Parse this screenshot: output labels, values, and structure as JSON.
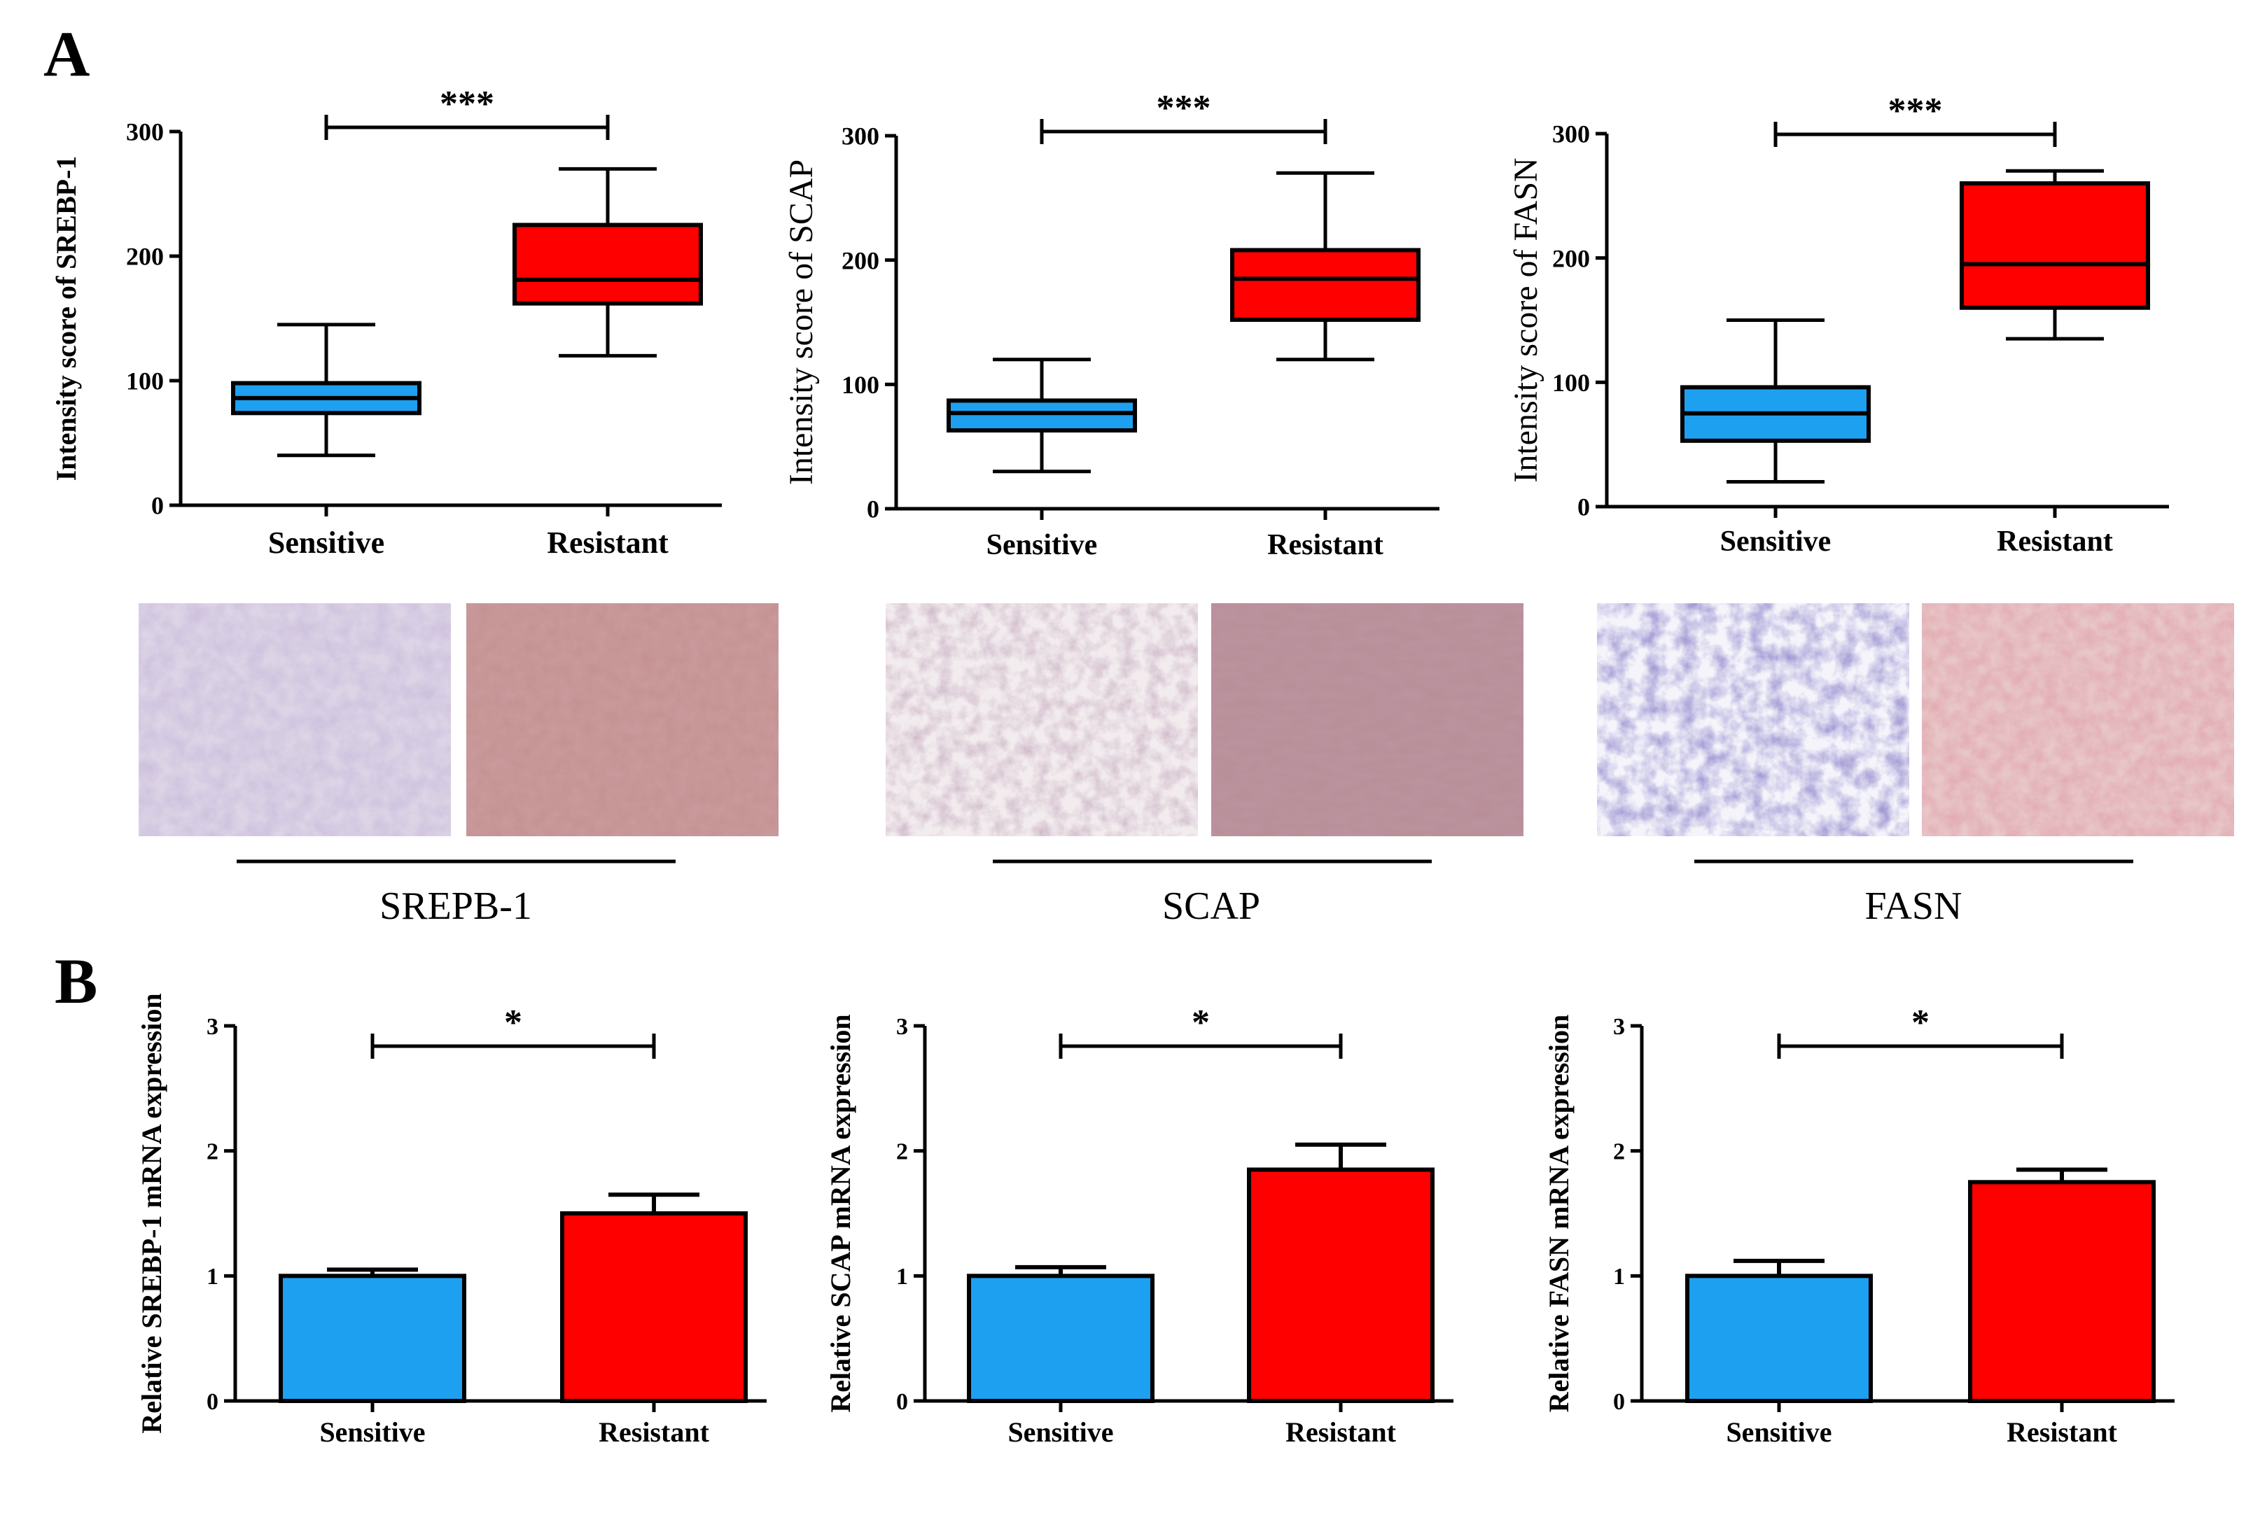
{
  "panels": {
    "a": {
      "label": "A"
    },
    "b": {
      "label": "B"
    }
  },
  "colors": {
    "sensitive": "#1ea0f0",
    "resistant": "#ff0000",
    "axis": "#000000"
  },
  "chart_data": [
    {
      "type": "box",
      "title": "",
      "ylabel": "Intensity score of SREBP-1",
      "ylabel_bold": true,
      "ylim": [
        0,
        300
      ],
      "yticks": [
        0,
        100,
        200,
        300
      ],
      "categories": [
        "Sensitive",
        "Resistant"
      ],
      "boxes": [
        {
          "name": "Sensitive",
          "min": 40,
          "q1": 74,
          "median": 86,
          "q3": 98,
          "max": 145
        },
        {
          "name": "Resistant",
          "min": 120,
          "q1": 162,
          "median": 181,
          "q3": 225,
          "max": 270
        }
      ],
      "significance": "***"
    },
    {
      "type": "box",
      "title": "",
      "ylabel": "Intensity score of SCAP",
      "ylabel_bold": false,
      "ylim": [
        0,
        300
      ],
      "yticks": [
        0,
        100,
        200,
        300
      ],
      "categories": [
        "Sensitive",
        "Resistant"
      ],
      "boxes": [
        {
          "name": "Sensitive",
          "min": 30,
          "q1": 63,
          "median": 77,
          "q3": 87,
          "max": 120
        },
        {
          "name": "Resistant",
          "min": 120,
          "q1": 152,
          "median": 185,
          "q3": 208,
          "max": 270
        }
      ],
      "significance": "***"
    },
    {
      "type": "box",
      "title": "",
      "ylabel": "Intensity score of FASN",
      "ylabel_bold": false,
      "ylim": [
        0,
        300
      ],
      "yticks": [
        0,
        100,
        200,
        300
      ],
      "categories": [
        "Sensitive",
        "Resistant"
      ],
      "boxes": [
        {
          "name": "Sensitive",
          "min": 20,
          "q1": 53,
          "median": 75,
          "q3": 96,
          "max": 150
        },
        {
          "name": "Resistant",
          "min": 135,
          "q1": 160,
          "median": 195,
          "q3": 260,
          "max": 270
        }
      ],
      "significance": "***"
    },
    {
      "type": "bar",
      "title": "",
      "ylabel": "Relative SREBP-1 mRNA expression",
      "ylim": [
        0,
        3
      ],
      "yticks": [
        0,
        1,
        2,
        3
      ],
      "categories": [
        "Sensitive",
        "Resistant"
      ],
      "values": [
        1.0,
        1.5
      ],
      "errors": [
        0.05,
        0.15
      ],
      "significance": "*"
    },
    {
      "type": "bar",
      "title": "",
      "ylabel": "Relative SCAP mRNA expression",
      "ylim": [
        0,
        3
      ],
      "yticks": [
        0,
        1,
        2,
        3
      ],
      "categories": [
        "Sensitive",
        "Resistant"
      ],
      "values": [
        1.0,
        1.85
      ],
      "errors": [
        0.07,
        0.2
      ],
      "significance": "*"
    },
    {
      "type": "bar",
      "title": "",
      "ylabel": "Relative FASN mRNA expression",
      "ylim": [
        0,
        3
      ],
      "yticks": [
        0,
        1,
        2,
        3
      ],
      "categories": [
        "Sensitive",
        "Resistant"
      ],
      "values": [
        1.0,
        1.75
      ],
      "errors": [
        0.12,
        0.1
      ],
      "significance": "*"
    }
  ],
  "micrographs": [
    {
      "caption": "SREPB-1",
      "images": [
        "sensitive-stain",
        "resistant-stain"
      ]
    },
    {
      "caption": "SCAP",
      "images": [
        "sensitive-stain",
        "resistant-stain"
      ]
    },
    {
      "caption": "FASN",
      "images": [
        "sensitive-stain",
        "resistant-stain"
      ]
    }
  ]
}
